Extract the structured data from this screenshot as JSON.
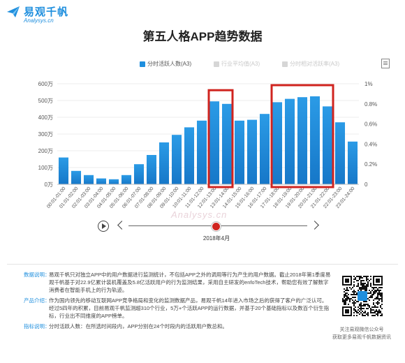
{
  "brand": {
    "name": "易观千帆",
    "domain": "Analysys.cn",
    "logo_icon": "paper-plane-icon",
    "color": "#1f8fde"
  },
  "title": "第五人格APP趋势数据",
  "legend": [
    {
      "label": "分时活跃人数(A3)",
      "color": "#1f8fde",
      "active": true
    },
    {
      "label": "行业平均值(A3)",
      "color": "#d6d6d6",
      "active": false
    },
    {
      "label": "分时相对活跃率(A3)",
      "color": "#d6d6d6",
      "active": false
    }
  ],
  "export_icon": "document-icon",
  "chart_data": {
    "type": "bar",
    "categories": [
      "00:01-01:00",
      "01:01-02:00",
      "02:01-03:00",
      "03:01-04:00",
      "04:01-05:00",
      "05:01-06:00",
      "06:01-07:00",
      "07:01-08:00",
      "08:01-09:00",
      "09:01-10:00",
      "10:01-11:00",
      "11:01-12:00",
      "12:01-13:00",
      "13:01-14:00",
      "14:01-15:00",
      "15:01-16:00",
      "16:01-17:00",
      "17:01-18:00",
      "18:01-19:00",
      "19:01-20:00",
      "20:01-21:00",
      "21:01-22:00",
      "22:01-23:00",
      "23:01-24:00"
    ],
    "series": [
      {
        "name": "分时活跃人数(A3)",
        "values": [
          160,
          80,
          55,
          35,
          30,
          55,
          120,
          175,
          250,
          295,
          340,
          380,
          495,
          480,
          380,
          385,
          420,
          490,
          510,
          520,
          525,
          465,
          370,
          255
        ]
      }
    ],
    "ylim": [
      0,
      600
    ],
    "y_ticks": [
      "0万",
      "100万",
      "200万",
      "300万",
      "400万",
      "500万",
      "600万"
    ],
    "y2_ticks": [
      "0",
      "0.2%",
      "0.4%",
      "0.6%",
      "0.8%",
      "1%"
    ],
    "grid": true,
    "legend_position": "top-right",
    "bar_color": "#1f8fde",
    "highlights": [
      {
        "from": "12:01-13:00",
        "to": "13:01-14:00",
        "color": "#d0241f"
      },
      {
        "from": "17:01-18:00",
        "to": "21:01-22:00",
        "color": "#d0241f"
      }
    ]
  },
  "timeline": {
    "label": "2018年4月",
    "play_icon": "play-icon",
    "prev_icon": "chevron-left-icon",
    "next_icon": "chevron-right-icon"
  },
  "watermark": "Analysys.cn",
  "info": [
    {
      "head": "数据说明：",
      "text": "易观千帆只对独立APP中的用户数据进行监测统计，不包括APP之外的调用等行为产生的用户数据。截止2018年第1季度易观千帆基于对22.9亿累计装机覆盖及5.8亿活跃用户的行为监测结果，采用自主研发的enfoTech技术，帮助您有效了解数字消费者在智能手机上的行为轨迹。"
    },
    {
      "head": "产品介绍：",
      "text": "作为国内领先的移动互联网APP竞争格局和变化的监测数据产品，易观千帆14年进入市场之后的获得了客户的广泛认可。经过5四年的积累，目前易观千帆监测超310个行业，5万+个活跃APP的运行数据，并基于20个基础指标以及数百个衍生指标，行业出不同维度的APP榜单。"
    },
    {
      "head": "指标说明：",
      "text": "分时活跃人数：在所选时间段内，APP分别在24个时段内的活跃用户数总和。"
    }
  ],
  "qr": {
    "caption_line1": "关注易观微信公众号",
    "caption_line2": "获取更多易观千帆数据资讯"
  }
}
